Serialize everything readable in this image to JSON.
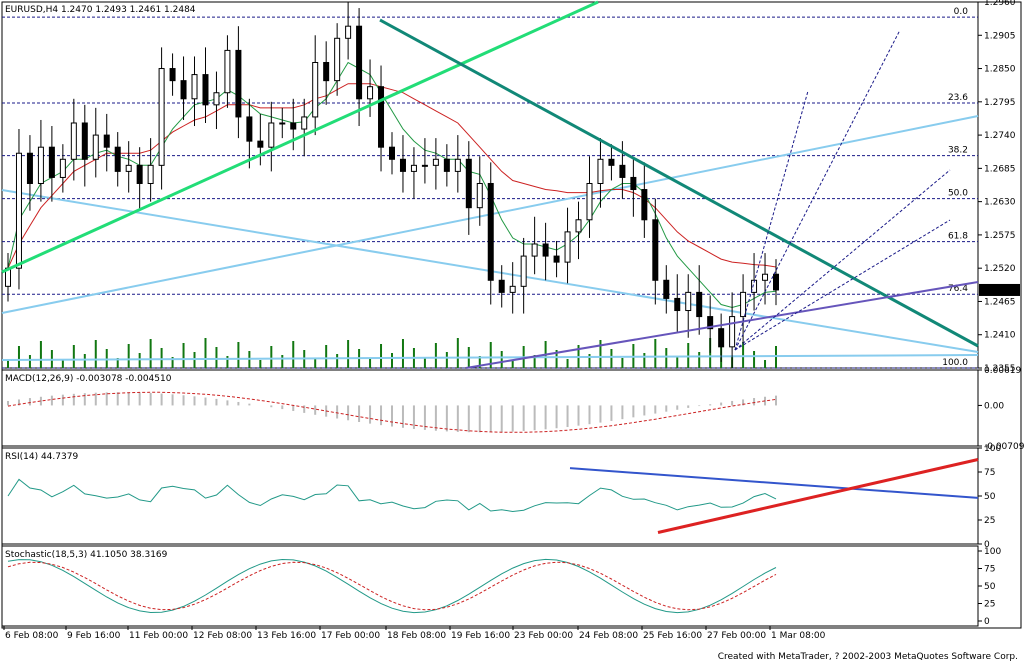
{
  "chart_data": [
    {
      "type": "candlestick",
      "pane": "price",
      "symbol": "EURUSD,H4",
      "ohlc_header": "1.2470 1.2493 1.2461 1.2484",
      "current_price": "1.2484",
      "ylim": [
        1.2355,
        1.296
      ],
      "yticks": [
        "1.2960",
        "1.2905",
        "1.2850",
        "1.2795",
        "1.2740",
        "1.2685",
        "1.2630",
        "1.2575",
        "1.2520",
        "1.2465",
        "1.2410",
        "1.2355"
      ],
      "fib_levels": [
        {
          "label": "0.0",
          "price": 1.2935
        },
        {
          "label": "23.6",
          "price": 1.2793
        },
        {
          "label": "38.2",
          "price": 1.2706
        },
        {
          "label": "50.0",
          "price": 1.2635
        },
        {
          "label": "61.8",
          "price": 1.2564
        },
        {
          "label": "76.4",
          "price": 1.2477
        },
        {
          "label": "100.0",
          "price": 1.2355
        }
      ],
      "trend_colors": {
        "up": "#22dd77",
        "down": "#118877",
        "light": "#88ccee",
        "purple": "#6655bb",
        "ma_fast": "#229944",
        "ma_slow": "#cc2222",
        "ma_mid": "#cc44cc",
        "candle": "#000000",
        "volume": "#117711",
        "grid": "#1a1a88"
      },
      "series": [
        {
          "name": "close",
          "values": [
            1.252,
            1.271,
            1.266,
            1.272,
            1.267,
            1.27,
            1.276,
            1.27,
            1.274,
            1.272,
            1.268,
            1.269,
            1.266,
            1.269,
            1.285,
            1.283,
            1.28,
            1.284,
            1.279,
            1.281,
            1.288,
            1.277,
            1.273,
            1.272,
            1.276,
            1.276,
            1.275,
            1.277,
            1.286,
            1.283,
            1.29,
            1.292,
            1.28,
            1.282,
            1.272,
            1.27,
            1.268,
            1.269,
            1.269,
            1.27,
            1.268,
            1.27,
            1.262,
            1.266,
            1.25,
            1.248,
            1.249,
            1.254,
            1.256,
            1.254,
            1.253,
            1.258,
            1.26,
            1.266,
            1.27,
            1.269,
            1.267,
            1.265,
            1.26,
            1.25,
            1.247,
            1.245,
            1.248,
            1.244,
            1.242,
            1.239,
            1.244,
            1.248,
            1.25,
            1.251,
            1.2484
          ]
        },
        {
          "name": "ma_slow",
          "values": [
            1.252,
            1.256,
            1.259,
            1.262,
            1.264,
            1.266,
            1.268,
            1.269,
            1.27,
            1.271,
            1.271,
            1.271,
            1.271,
            1.2715,
            1.273,
            1.2745,
            1.2755,
            1.2765,
            1.277,
            1.278,
            1.279,
            1.279,
            1.279,
            1.2785,
            1.2785,
            1.2785,
            1.2785,
            1.279,
            1.28,
            1.2805,
            1.2815,
            1.2825,
            1.2825,
            1.2825,
            1.282,
            1.2815,
            1.281,
            1.28,
            1.279,
            1.278,
            1.277,
            1.276,
            1.274,
            1.272,
            1.27,
            1.268,
            1.2665,
            1.266,
            1.2655,
            1.265,
            1.2648,
            1.2645,
            1.2645,
            1.2645,
            1.2648,
            1.265,
            1.265,
            1.2645,
            1.2635,
            1.262,
            1.26,
            1.258,
            1.2565,
            1.2555,
            1.2545,
            1.2535,
            1.253,
            1.2528,
            1.2526,
            1.2525,
            1.2522
          ]
        },
        {
          "name": "ma_fast",
          "values": [
            1.252,
            1.26,
            1.263,
            1.266,
            1.267,
            1.268,
            1.27,
            1.27,
            1.271,
            1.2715,
            1.2705,
            1.27,
            1.269,
            1.269,
            1.272,
            1.275,
            1.277,
            1.279,
            1.2795,
            1.28,
            1.2815,
            1.2805,
            1.279,
            1.2775,
            1.277,
            1.2765,
            1.276,
            1.2762,
            1.2785,
            1.28,
            1.283,
            1.286,
            1.285,
            1.284,
            1.281,
            1.278,
            1.275,
            1.273,
            1.2715,
            1.271,
            1.27,
            1.27,
            1.268,
            1.2675,
            1.264,
            1.26,
            1.257,
            1.256,
            1.256,
            1.2555,
            1.255,
            1.256,
            1.2575,
            1.26,
            1.263,
            1.265,
            1.266,
            1.266,
            1.2645,
            1.261,
            1.257,
            1.254,
            1.252,
            1.25,
            1.248,
            1.246,
            1.2455,
            1.246,
            1.247,
            1.248,
            1.2482
          ]
        }
      ]
    },
    {
      "type": "histogram",
      "pane": "macd",
      "title": "MACD(12,26,9) -0.003078 -0.004510",
      "ylim": [
        -0.00709,
        0.00619
      ],
      "yticks": [
        "0.00619",
        "0.00",
        "-0.00709"
      ]
    },
    {
      "type": "line",
      "pane": "rsi",
      "title": "RSI(14) 44.7379",
      "ylim": [
        0,
        100
      ],
      "yticks": [
        "100",
        "75",
        "50",
        "25",
        "0"
      ]
    },
    {
      "type": "line",
      "pane": "stochastic",
      "title": "Stochastic(18,5,3) 41.1050 38.3169",
      "ylim": [
        0,
        100
      ],
      "yticks": [
        "100",
        "75",
        "50",
        "25",
        "0"
      ],
      "x_tick_labels": [
        "6 Feb 08:00",
        "9 Feb 16:00",
        "11 Feb 00:00",
        "12 Feb 08:00",
        "13 Feb 16:00",
        "17 Feb 00:00",
        "18 Feb 08:00",
        "19 Feb 16:00",
        "23 Feb 00:00",
        "24 Feb 08:00",
        "25 Feb 16:00",
        "27 Feb 00:00",
        "1 Mar 08:00"
      ]
    }
  ],
  "footer": "Created with MetaTrader, ? 2002-2003 MetaQuotes Software Corp."
}
